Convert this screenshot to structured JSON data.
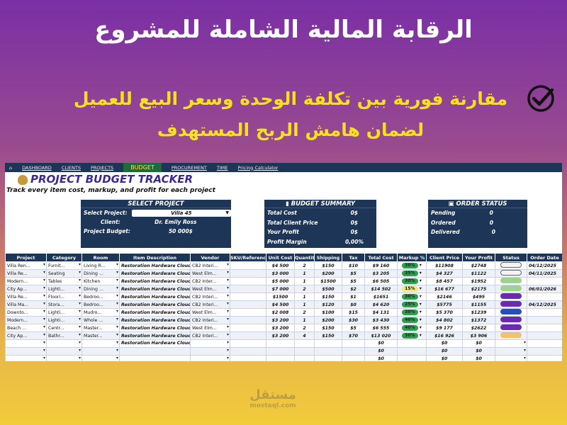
{
  "hero": {
    "title": "الرقابة المالية الشاملة للمشروع",
    "subtitle_line1": "مقارنة فورية بين تكلفة الوحدة وسعر البيع للعميل",
    "subtitle_line2": "لضمان هامش الربح المستهدف"
  },
  "nav": {
    "dashboard": "DASHBOARD",
    "clients": "CLIENTS",
    "projects": "PROJECTS",
    "budget": "BUDGET",
    "procurement": "PROCUREMENT",
    "time": "TIME",
    "pricing": "Pricing Calculator"
  },
  "tracker": {
    "title": "PROJECT BUDGET TRACKER",
    "subtitle": "Track every item cost, markup, and profit for each project"
  },
  "select_project": {
    "header": "SELECT PROJECT",
    "project_label": "Select Project:",
    "project_value": "Villa 45",
    "client_label": "Client:",
    "client_value": "Dr. Emily Ross",
    "budget_label": "Project Budget:",
    "budget_value": "50 000$"
  },
  "budget_summary": {
    "header": "BUDGET SUMMARY",
    "rows": [
      {
        "label": "Total Cost",
        "value": "0$"
      },
      {
        "label": "Total Client Price",
        "value": "0$"
      },
      {
        "label": "Your Profit",
        "value": "0$"
      },
      {
        "label": "Profit Margin",
        "value": "0,00%"
      }
    ]
  },
  "order_status": {
    "header": "ORDER STATUS",
    "rows": [
      {
        "label": "Pending",
        "value": "0"
      },
      {
        "label": "Ordered",
        "value": "0"
      },
      {
        "label": "Delivered",
        "value": "0"
      }
    ]
  },
  "table": {
    "headers": [
      "Project",
      "Category",
      "Room",
      "Item Description",
      "Vendor",
      "SKU/Reference",
      "Unit Cost",
      "Quantity",
      "Shipping",
      "Tax",
      "Total Cost",
      "Markup %",
      "Client Price",
      "Your Profit",
      "Status",
      "Order Date"
    ],
    "rows": [
      [
        "Villa Ren...",
        "Furnit...",
        "Living R...",
        "Restoration Hardware Cloud S",
        "CB2 Interi...",
        "",
        "$4 500",
        "2",
        "$150",
        "$10",
        "$9 160",
        "30%",
        "$11908",
        "$2748",
        "grey",
        "04/12/2025"
      ],
      [
        "Villa Re...",
        "Seating",
        "Dining ...",
        "Restoration Hardware Cloud S",
        "West Elm...",
        "",
        "$3 000",
        "1",
        "$200",
        "$5",
        "$3 205",
        "35%",
        "$4 327",
        "$1122",
        "grey",
        "04/11/2025"
      ],
      [
        "Modern...",
        "Tables",
        "Kitchen",
        "Restoration Hardware Cloud S",
        "CB2 Inter...",
        "",
        "$5 000",
        "1",
        "$1500",
        "$5",
        "$6 505",
        "30%",
        "$8 457",
        "$1952",
        "green",
        ""
      ],
      [
        "City Ap...",
        "Lighti...",
        "Dining ...",
        "Restoration Hardware Cloud S",
        "West Elm...",
        "",
        "$7 000",
        "2",
        "$500",
        "$2",
        "$14 502",
        "15%",
        "$16 677",
        "$2175",
        "green",
        "06/01/2026"
      ],
      [
        "Villa Re...",
        "Floori...",
        "Bedroo...",
        "Restoration Hardware Cloud S",
        "CB2 Interi...",
        "",
        "$1500",
        "1",
        "$150",
        "$1",
        "$1651",
        "30%",
        "$2146",
        "$495",
        "purple",
        ""
      ],
      [
        "Villa Ma...",
        "Stora...",
        "Bedroo...",
        "Restoration Hardware Cloud S",
        "CB2 Interi...",
        "",
        "$4 500",
        "1",
        "$120",
        "$0",
        "$4 620",
        "25%",
        "$5775",
        "$1155",
        "purple",
        "04/12/2025"
      ],
      [
        "Downto...",
        "Lighti...",
        "Mudro...",
        "Restoration Hardware Cloud S",
        "West Elm...",
        "",
        "$2 008",
        "2",
        "$100",
        "$15",
        "$4 131",
        "30%",
        "$5 370",
        "$1239",
        "blue",
        ""
      ],
      [
        "Modern...",
        "Lighti...",
        "Whole ...",
        "Restoration Hardware Cloud S",
        "CB2 Interi...",
        "",
        "$3 200",
        "1",
        "$200",
        "$30",
        "$3 430",
        "40%",
        "$4 802",
        "$1372",
        "purple",
        ""
      ],
      [
        "Beach ...",
        "Centr...",
        "Master...",
        "Restoration Hardware Cloud S",
        "West Elm...",
        "",
        "$3 200",
        "2",
        "$150",
        "$5",
        "$6 555",
        "40%",
        "$9 177",
        "$2622",
        "purple",
        ""
      ],
      [
        "City Ap...",
        "Bathr...",
        "Master...",
        "Restoration Hardware Cloud S",
        "CB2 Interi...",
        "",
        "$3 200",
        "4",
        "$150",
        "$70",
        "$13 020",
        "30%",
        "$16 926",
        "$3 906",
        "orange",
        ""
      ],
      [
        "",
        "",
        "",
        "Restoration Hardware Cloud S",
        "",
        "",
        "",
        "",
        "",
        "",
        "$0",
        "",
        "$0",
        "$0",
        "",
        ""
      ],
      [
        "",
        "",
        "",
        "",
        "",
        "",
        "",
        "",
        "",
        "",
        "$0",
        "",
        "$0",
        "$0",
        "",
        ""
      ],
      [
        "",
        "",
        "",
        "",
        "",
        "",
        "",
        "",
        "",
        "",
        "$0",
        "",
        "$0",
        "$0",
        "",
        ""
      ]
    ]
  },
  "markup_colors": {
    "green": "#2e9e4f",
    "yellow": "#f3e77a"
  },
  "watermark": {
    "text": "mostaql.com"
  }
}
